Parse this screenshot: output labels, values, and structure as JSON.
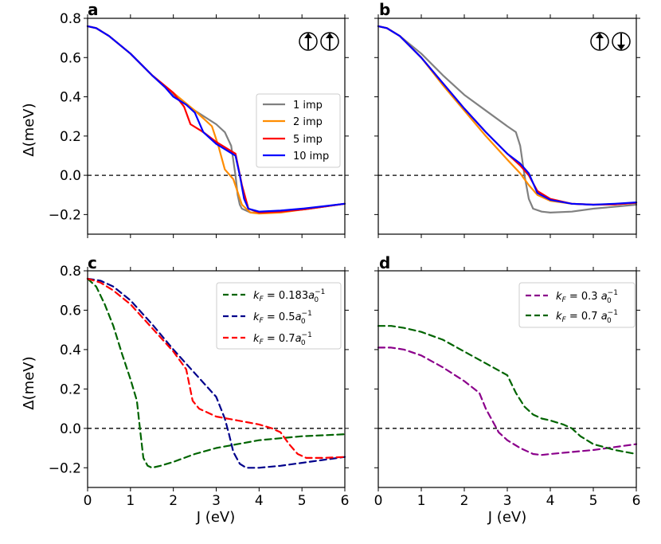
{
  "y_axis_label": "Δ(meV)",
  "x_axis_label": "J (eV)",
  "chart_data": [
    {
      "panel": "a",
      "type": "line",
      "xlim": [
        0,
        6
      ],
      "ylim": [
        -0.3,
        0.8
      ],
      "xticks": [
        0,
        1,
        2,
        3,
        4,
        5,
        6
      ],
      "yticks": [
        "0.8",
        "0.6",
        "0.4",
        "0.2",
        "0.0",
        "−0.2"
      ],
      "ytick_values": [
        0.8,
        0.6,
        0.4,
        0.2,
        0.0,
        -0.2
      ],
      "xlabel": "",
      "ylabel": "Δ(meV)",
      "inset_symbol": "parallel spins ↑↑",
      "legend_position": "center-right",
      "hline_y": 0,
      "series": [
        {
          "name": "1 imp",
          "color": "#808080",
          "dash": "solid",
          "x": [
            0,
            0.2,
            0.5,
            1,
            1.5,
            2,
            2.5,
            3,
            3.2,
            3.35,
            3.45,
            3.5,
            3.55,
            3.6,
            3.8,
            4,
            4.5,
            5,
            5.5,
            6
          ],
          "y": [
            0.76,
            0.75,
            0.71,
            0.62,
            0.51,
            0.41,
            0.33,
            0.26,
            0.22,
            0.15,
            0.0,
            -0.1,
            -0.15,
            -0.17,
            -0.19,
            -0.19,
            -0.185,
            -0.175,
            -0.16,
            -0.145
          ]
        },
        {
          "name": "2 imp",
          "color": "#ff8c00",
          "dash": "solid",
          "x": [
            0,
            0.2,
            0.5,
            1,
            1.5,
            2,
            2.5,
            2.9,
            3.05,
            3.2,
            3.4,
            3.6,
            3.8,
            4,
            4.5,
            5,
            5.5,
            6
          ],
          "y": [
            0.76,
            0.75,
            0.71,
            0.62,
            0.51,
            0.42,
            0.33,
            0.25,
            0.15,
            0.03,
            -0.02,
            -0.15,
            -0.19,
            -0.195,
            -0.19,
            -0.175,
            -0.16,
            -0.145
          ]
        },
        {
          "name": "5 imp",
          "color": "#ff0000",
          "dash": "solid",
          "x": [
            0,
            0.2,
            0.5,
            1,
            1.5,
            2,
            2.25,
            2.4,
            2.7,
            3,
            3.3,
            3.45,
            3.6,
            3.75,
            4,
            4.5,
            5,
            5.5,
            6
          ],
          "y": [
            0.76,
            0.75,
            0.71,
            0.62,
            0.51,
            0.42,
            0.35,
            0.26,
            0.22,
            0.17,
            0.13,
            0.11,
            -0.05,
            -0.17,
            -0.19,
            -0.185,
            -0.175,
            -0.16,
            -0.145
          ]
        },
        {
          "name": "10 imp",
          "color": "#0000ff",
          "dash": "solid",
          "x": [
            0,
            0.2,
            0.5,
            1,
            1.5,
            1.8,
            2.0,
            2.3,
            2.5,
            2.7,
            3,
            3.3,
            3.45,
            3.55,
            3.65,
            3.75,
            4,
            4.5,
            5,
            5.5,
            6
          ],
          "y": [
            0.76,
            0.75,
            0.71,
            0.62,
            0.51,
            0.45,
            0.4,
            0.36,
            0.32,
            0.22,
            0.16,
            0.12,
            0.1,
            0.0,
            -0.12,
            -0.17,
            -0.185,
            -0.18,
            -0.17,
            -0.158,
            -0.145
          ]
        }
      ]
    },
    {
      "panel": "b",
      "type": "line",
      "xlim": [
        0,
        6
      ],
      "ylim": [
        -0.3,
        0.8
      ],
      "xticks": [
        0,
        1,
        2,
        3,
        4,
        5,
        6
      ],
      "yticks": [],
      "xlabel": "",
      "ylabel": "",
      "inset_symbol": "antiparallel spins ↑↓",
      "hline_y": 0,
      "series": [
        {
          "name": "1 imp",
          "color": "#808080",
          "dash": "solid",
          "x": [
            0,
            0.2,
            0.5,
            1,
            1.5,
            2,
            2.5,
            3,
            3.2,
            3.3,
            3.4,
            3.5,
            3.6,
            3.8,
            4,
            4.5,
            5,
            5.5,
            6
          ],
          "y": [
            0.76,
            0.75,
            0.71,
            0.62,
            0.51,
            0.41,
            0.33,
            0.25,
            0.22,
            0.15,
            0.0,
            -0.12,
            -0.17,
            -0.185,
            -0.19,
            -0.185,
            -0.17,
            -0.16,
            -0.15
          ]
        },
        {
          "name": "2 imp",
          "color": "#ff8c00",
          "dash": "solid",
          "x": [
            0,
            0.2,
            0.5,
            1,
            1.5,
            2,
            2.5,
            3,
            3.3,
            3.5,
            3.7,
            4,
            4.5,
            5,
            5.5,
            6
          ],
          "y": [
            0.76,
            0.75,
            0.71,
            0.6,
            0.46,
            0.33,
            0.2,
            0.08,
            0.01,
            -0.05,
            -0.1,
            -0.13,
            -0.145,
            -0.15,
            -0.148,
            -0.14
          ]
        },
        {
          "name": "5 imp",
          "color": "#ff0000",
          "dash": "solid",
          "x": [
            0,
            0.2,
            0.5,
            1,
            1.5,
            2,
            2.5,
            3,
            3.3,
            3.5,
            3.7,
            4,
            4.5,
            5,
            5.5,
            6
          ],
          "y": [
            0.76,
            0.75,
            0.71,
            0.6,
            0.47,
            0.34,
            0.22,
            0.11,
            0.05,
            0.0,
            -0.08,
            -0.12,
            -0.145,
            -0.15,
            -0.148,
            -0.14
          ]
        },
        {
          "name": "10 imp",
          "color": "#0000ff",
          "dash": "solid",
          "x": [
            0,
            0.2,
            0.5,
            1,
            1.5,
            2,
            2.5,
            3,
            3.3,
            3.5,
            3.7,
            4,
            4.5,
            5,
            5.5,
            6
          ],
          "y": [
            0.76,
            0.75,
            0.71,
            0.6,
            0.47,
            0.34,
            0.22,
            0.11,
            0.06,
            0.01,
            -0.09,
            -0.125,
            -0.145,
            -0.15,
            -0.145,
            -0.138
          ]
        }
      ]
    },
    {
      "panel": "c",
      "type": "line",
      "xlim": [
        0,
        6
      ],
      "ylim": [
        -0.3,
        0.8
      ],
      "xticks": [
        0,
        1,
        2,
        3,
        4,
        5,
        6
      ],
      "yticks": [
        "0.8",
        "0.6",
        "0.4",
        "0.2",
        "0.0",
        "−0.2"
      ],
      "ytick_values": [
        0.8,
        0.6,
        0.4,
        0.2,
        0.0,
        -0.2
      ],
      "xlabel": "J (eV)",
      "ylabel": "Δ(meV)",
      "legend_position": "top-right",
      "hline_y": 0,
      "series": [
        {
          "name": "k_F = 0.183 a0^-1",
          "label_main": "k",
          "label_sub": "F",
          "label_eq": " = 0.183",
          "label_unit": "a",
          "label_unit_sub": "0",
          "label_unit_sup": "−1",
          "color": "#006400",
          "dash": "dashed",
          "x": [
            0,
            0.2,
            0.4,
            0.6,
            0.8,
            1.0,
            1.15,
            1.22,
            1.3,
            1.4,
            1.5,
            1.7,
            2,
            2.5,
            3,
            3.5,
            4,
            4.5,
            5,
            5.5,
            6
          ],
          "y": [
            0.76,
            0.72,
            0.63,
            0.52,
            0.38,
            0.25,
            0.14,
            0.0,
            -0.15,
            -0.19,
            -0.2,
            -0.19,
            -0.17,
            -0.13,
            -0.1,
            -0.08,
            -0.06,
            -0.05,
            -0.04,
            -0.035,
            -0.03
          ]
        },
        {
          "name": "k_F = 0.5 a0^-1",
          "label_main": "k",
          "label_sub": "F",
          "label_eq": " = 0.5",
          "label_unit": "a",
          "label_unit_sub": "0",
          "label_unit_sup": "−1",
          "color": "#00008b",
          "dash": "dashed",
          "x": [
            0,
            0.3,
            0.6,
            1,
            1.5,
            2,
            2.5,
            3,
            3.2,
            3.3,
            3.4,
            3.55,
            3.7,
            4,
            4.5,
            5,
            5.5,
            6
          ],
          "y": [
            0.76,
            0.75,
            0.72,
            0.65,
            0.53,
            0.4,
            0.28,
            0.16,
            0.05,
            -0.03,
            -0.12,
            -0.18,
            -0.2,
            -0.2,
            -0.19,
            -0.175,
            -0.16,
            -0.145
          ]
        },
        {
          "name": "k_F = 0.7 a0^-1",
          "label_main": "k",
          "label_sub": "F",
          "label_eq": " = 0.7",
          "label_unit": "a",
          "label_unit_sub": "0",
          "label_unit_sup": "−1",
          "color": "#ff0000",
          "dash": "dashed",
          "x": [
            0,
            0.3,
            0.6,
            1,
            1.5,
            2,
            2.3,
            2.45,
            2.6,
            2.8,
            3,
            3.5,
            4,
            4.3,
            4.5,
            4.7,
            4.9,
            5.1,
            5.5,
            6
          ],
          "y": [
            0.76,
            0.74,
            0.7,
            0.63,
            0.51,
            0.39,
            0.3,
            0.14,
            0.1,
            0.08,
            0.06,
            0.04,
            0.02,
            0.0,
            -0.02,
            -0.08,
            -0.13,
            -0.15,
            -0.15,
            -0.145
          ]
        }
      ]
    },
    {
      "panel": "d",
      "type": "line",
      "xlim": [
        0,
        6
      ],
      "ylim": [
        -0.3,
        0.8
      ],
      "xticks": [
        0,
        1,
        2,
        3,
        4,
        5,
        6
      ],
      "yticks": [],
      "xlabel": "J (eV)",
      "ylabel": "",
      "legend_position": "top-right",
      "hline_y": 0,
      "series": [
        {
          "name": "k_F = 0.3 a0^-1",
          "label_main": "k",
          "label_sub": "F",
          "label_eq": " = 0.3 ",
          "label_unit": "a",
          "label_unit_sub": "0",
          "label_unit_sup": "−1",
          "color": "#8b008b",
          "dash": "dashed",
          "x": [
            0,
            0.3,
            0.6,
            1,
            1.5,
            2,
            2.35,
            2.5,
            2.65,
            2.8,
            3,
            3.3,
            3.6,
            3.8,
            4,
            4.5,
            5,
            5.5,
            6
          ],
          "y": [
            0.41,
            0.41,
            0.4,
            0.37,
            0.31,
            0.24,
            0.18,
            0.1,
            0.04,
            -0.02,
            -0.06,
            -0.1,
            -0.13,
            -0.135,
            -0.13,
            -0.12,
            -0.11,
            -0.095,
            -0.08
          ]
        },
        {
          "name": "k_F = 0.7 a0^-1",
          "label_main": "k",
          "label_sub": "F",
          "label_eq": " = 0.7 ",
          "label_unit": "a",
          "label_unit_sub": "0",
          "label_unit_sup": "−1",
          "color": "#006400",
          "dash": "dashed",
          "x": [
            0,
            0.3,
            0.6,
            1,
            1.5,
            2,
            2.5,
            3,
            3.2,
            3.4,
            3.6,
            3.8,
            4,
            4.3,
            4.5,
            4.7,
            5,
            5.5,
            6
          ],
          "y": [
            0.52,
            0.52,
            0.51,
            0.49,
            0.45,
            0.39,
            0.33,
            0.27,
            0.18,
            0.11,
            0.07,
            0.05,
            0.04,
            0.02,
            0.0,
            -0.04,
            -0.08,
            -0.11,
            -0.13
          ]
        }
      ]
    }
  ]
}
